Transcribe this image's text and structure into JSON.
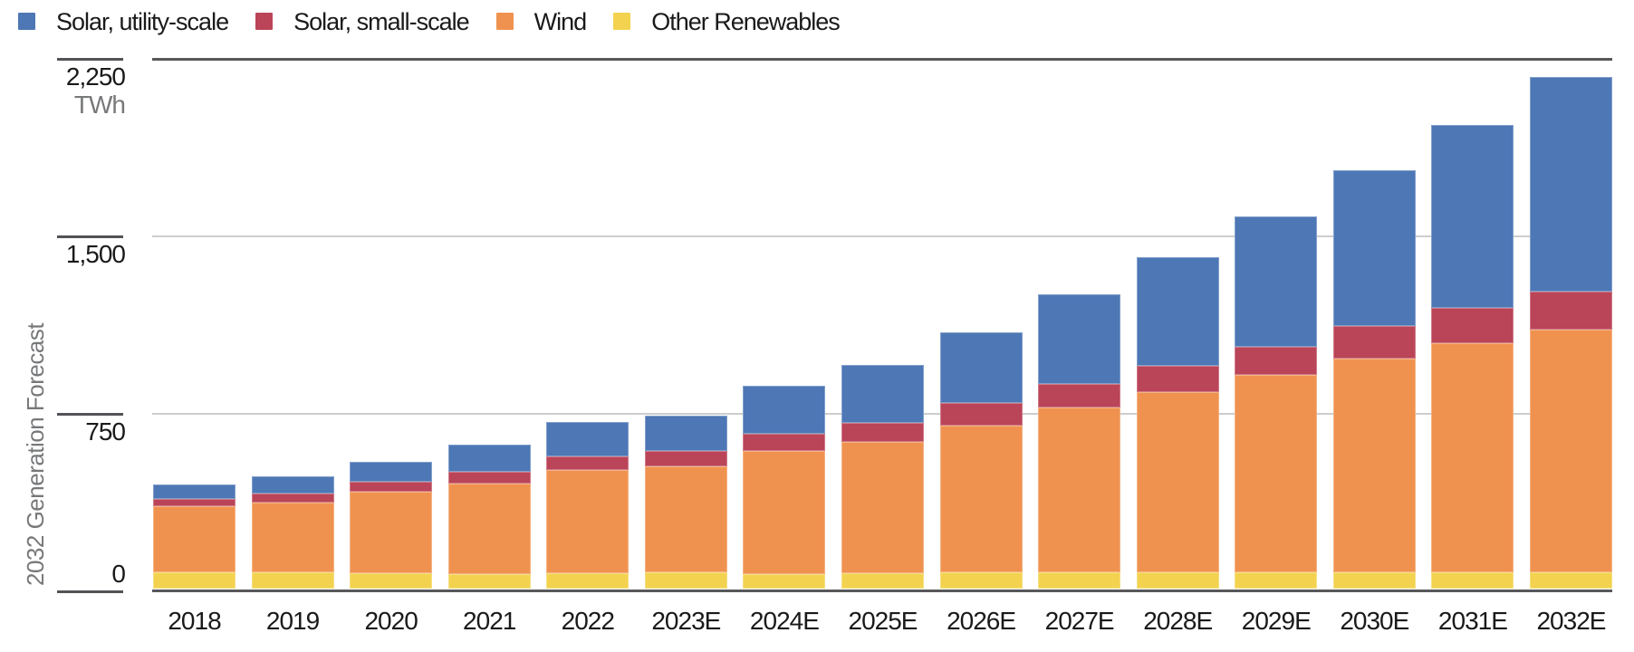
{
  "chart_data": {
    "type": "bar",
    "stacked": true,
    "title": "",
    "unit_label": "TWh",
    "y_axis_label": "2032 Generation Forecast",
    "categories": [
      "2018",
      "2019",
      "2020",
      "2021",
      "2022",
      "2023E",
      "2024E",
      "2025E",
      "2026E",
      "2027E",
      "2028E",
      "2029E",
      "2030E",
      "2031E",
      "2032E"
    ],
    "series": [
      {
        "name": "Solar, utility-scale",
        "color": "#4D77B5",
        "values": [
          60,
          72,
          87,
          115,
          146,
          150,
          204,
          245,
          300,
          379,
          459,
          548,
          657,
          774,
          906
        ]
      },
      {
        "name": "Solar, small-scale",
        "color": "#BA4458",
        "values": [
          32,
          36,
          40,
          48,
          55,
          67,
          72,
          79,
          93,
          102,
          110,
          119,
          138,
          147,
          159
        ]
      },
      {
        "name": "Wind",
        "color": "#F0924F",
        "values": [
          278,
          295,
          345,
          383,
          436,
          446,
          519,
          556,
          621,
          695,
          761,
          835,
          904,
          969,
          1027
        ]
      },
      {
        "name": "Other Renewables",
        "color": "#F3D24F",
        "values": [
          70,
          70,
          65,
          62,
          66,
          69,
          62,
          65,
          69,
          69,
          69,
          69,
          69,
          69,
          69
        ]
      }
    ],
    "stack_order_bottom_to_top": [
      "Other Renewables",
      "Wind",
      "Solar, small-scale",
      "Solar, utility-scale"
    ],
    "totals": [
      440,
      473,
      537,
      608,
      703,
      732,
      857,
      945,
      1083,
      1245,
      1399,
      1571,
      1768,
      1959,
      2161
    ],
    "ylim": [
      0,
      2250
    ],
    "y_ticks": [
      0,
      750,
      1500,
      2250
    ],
    "y_tick_labels": [
      "0",
      "750",
      "1,500",
      "2,250"
    ],
    "grid": "horizontal",
    "legend_position": "top-left"
  },
  "colors": {
    "background": "#ffffff",
    "gridline": "#cdcdcd",
    "axis_line": "#58585a",
    "tick": "#525356",
    "text_primary": "#1a1a1a",
    "text_secondary": "#77787a"
  }
}
